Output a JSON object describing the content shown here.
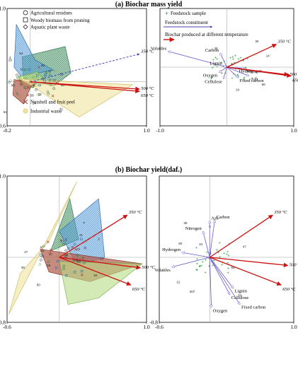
{
  "titles": {
    "a": "(a) Biochar mass yield",
    "b": "(b) Biochar yield(daf.)"
  },
  "legends": {
    "feedstock_groups": [
      "Agricultural residues",
      "Woody biomass from pruning",
      "Aquatic plant waste",
      "Nutshell and fruit peel",
      "Industrial waste"
    ],
    "variables": [
      "Feedstock sample",
      "Feedstock constituent",
      "Biochar produced at different temperature"
    ]
  },
  "colors": {
    "agricultural": "#2e8b57",
    "woody": "#3a8fd0",
    "aquatic": "#7fbf3f",
    "nutshell": "#a23b2c",
    "industrial": "#efe19a",
    "constituent": "#6a5acd",
    "temperature": "#cc1111",
    "sample": "#2ea043"
  },
  "chart_data": [
    {
      "type": "scatter",
      "title": "(a) Biochar mass yield",
      "panel": "samples",
      "xlim": [
        -0.2,
        1.0
      ],
      "ylim": [
        -0.6,
        1.0
      ],
      "xticks": [
        "-0.2",
        "1.0"
      ],
      "yticks": [
        "1.0",
        "-0.6"
      ],
      "polygons": [
        {
          "name": "Agricultural residues",
          "points": [
            [
              -0.07,
              0.34
            ],
            [
              0.3,
              0.48
            ],
            [
              0.35,
              0.12
            ],
            [
              0.2,
              -0.06
            ],
            [
              -0.06,
              0.05
            ]
          ]
        },
        {
          "name": "Woody biomass from pruning",
          "points": [
            [
              -0.12,
              0.78
            ],
            [
              0.04,
              0.3
            ],
            [
              0.2,
              0.16
            ],
            [
              -0.08,
              0.08
            ],
            [
              -0.14,
              0.2
            ]
          ]
        },
        {
          "name": "Aquatic plant waste",
          "points": [
            [
              -0.12,
              0.06
            ],
            [
              0.06,
              0.14
            ],
            [
              0.14,
              -0.02
            ],
            [
              -0.04,
              -0.1
            ]
          ]
        },
        {
          "name": "Nutshell and fruit peel",
          "points": [
            [
              -0.14,
              0.03
            ],
            [
              0.02,
              -0.01
            ],
            [
              -0.06,
              -0.3
            ],
            [
              -0.15,
              -0.18
            ]
          ]
        },
        {
          "name": "Industrial waste",
          "points": [
            [
              -0.1,
              0.04
            ],
            [
              0.88,
              -0.04
            ],
            [
              0.42,
              -0.48
            ],
            [
              0.02,
              -0.06
            ]
          ]
        }
      ],
      "arrows": [
        {
          "label": "350 °C",
          "to": [
            0.94,
            0.38
          ]
        },
        {
          "label": "500 °C",
          "to": [
            0.94,
            -0.1
          ]
        },
        {
          "label": "650 °C",
          "to": [
            0.94,
            -0.13
          ]
        }
      ],
      "sample_labels": [
        "7",
        "14",
        "12",
        "41",
        "29",
        "60",
        "48",
        "37",
        "51",
        "54",
        "5",
        "2",
        "53",
        "58"
      ]
    },
    {
      "type": "scatter",
      "title": "(a) Biochar mass yield",
      "panel": "variables",
      "xlim": [
        -1.0,
        1.0
      ],
      "ylim": [
        -1.0,
        1.0
      ],
      "xticks": [
        "-1.0",
        "1.0"
      ],
      "constituents": [
        {
          "label": "Volatiles",
          "to": [
            -0.88,
            0.27
          ]
        },
        {
          "label": "Carbon",
          "to": [
            -0.1,
            0.24
          ]
        },
        {
          "label": "Ash",
          "to": [
            0.33,
            -0.15
          ]
        },
        {
          "label": "Nitrogen",
          "to": [
            0.26,
            -0.02
          ]
        },
        {
          "label": "Hydrogen",
          "to": [
            0.16,
            -0.02
          ]
        },
        {
          "label": "Lignin",
          "to": [
            -0.05,
            0.02
          ]
        },
        {
          "label": "Oxygen",
          "to": [
            -0.12,
            -0.09
          ]
        },
        {
          "label": "Cellulose",
          "to": [
            -0.05,
            -0.2
          ]
        },
        {
          "label": "Fixed carbon",
          "to": [
            0.17,
            -0.18
          ]
        }
      ],
      "temperatures": [
        {
          "label": "350 °C",
          "to": [
            0.74,
            0.39
          ]
        },
        {
          "label": "500 °C",
          "to": [
            0.92,
            -0.13
          ]
        },
        {
          "label": "650 °C",
          "to": [
            0.96,
            -0.15
          ]
        }
      ],
      "sample_labels": [
        "24",
        "48",
        "14",
        "30",
        "58"
      ]
    },
    {
      "type": "scatter",
      "title": "(b) Biochar yield(daf.)",
      "panel": "samples",
      "xlim": [
        -0.6,
        1.0
      ],
      "ylim": [
        -0.8,
        1.0
      ],
      "xticks": [
        "-0.6",
        "1.0"
      ],
      "yticks": [
        "1.0",
        "-0.8"
      ],
      "polygons": [
        {
          "name": "Agricultural residues",
          "points": [
            [
              0.12,
              0.72
            ],
            [
              0.22,
              0.22
            ],
            [
              -0.1,
              0.08
            ],
            [
              -0.12,
              0.02
            ]
          ]
        },
        {
          "name": "Woody biomass from pruning",
          "points": [
            [
              0.45,
              0.72
            ],
            [
              0.52,
              0.0
            ],
            [
              0.2,
              -0.1
            ],
            [
              0.0,
              0.32
            ]
          ]
        },
        {
          "name": "Industrial waste",
          "points": [
            [
              0.2,
              0.93
            ],
            [
              -0.58,
              -0.7
            ],
            [
              -0.45,
              -0.2
            ],
            [
              -0.12,
              0.2
            ]
          ]
        },
        {
          "name": "Nutshell and fruit peel",
          "points": [
            [
              -0.22,
              0.1
            ],
            [
              0.95,
              -0.08
            ],
            [
              0.35,
              -0.3
            ],
            [
              -0.12,
              -0.18
            ]
          ]
        },
        {
          "name": "Aquatic plant waste",
          "points": [
            [
              0.0,
              -0.05
            ],
            [
              0.95,
              -0.08
            ],
            [
              0.45,
              -0.5
            ],
            [
              0.1,
              -0.58
            ]
          ]
        }
      ],
      "arrows": [
        {
          "label": "350 °C",
          "to": [
            0.78,
            0.52
          ]
        },
        {
          "label": "500 °C",
          "to": [
            0.93,
            -0.13
          ]
        },
        {
          "label": "650 °C",
          "to": [
            0.82,
            -0.34
          ]
        }
      ],
      "sample_labels": [
        "59",
        "38",
        "60",
        "54",
        "25",
        "5",
        "2",
        "4",
        "47",
        "31",
        "12",
        "56"
      ]
    },
    {
      "type": "scatter",
      "title": "(b) Biochar yield(daf.)",
      "panel": "variables",
      "xlim": [
        -0.6,
        1.0
      ],
      "ylim": [
        -0.8,
        1.0
      ],
      "xticks": [
        "-0.6",
        "1.0"
      ],
      "yticks": [
        "-0.8"
      ],
      "constituents": [
        {
          "label": "Ash",
          "to": [
            0.0,
            0.45
          ]
        },
        {
          "label": "Carbon",
          "to": [
            0.06,
            0.46
          ]
        },
        {
          "label": "Nitrogen",
          "to": [
            -0.08,
            0.32
          ]
        },
        {
          "label": "Hydrogen",
          "to": [
            -0.33,
            0.06
          ]
        },
        {
          "label": "Volatiles",
          "to": [
            -0.45,
            -0.12
          ]
        },
        {
          "label": "Lignin",
          "to": [
            0.28,
            -0.38
          ]
        },
        {
          "label": "Cellulose",
          "to": [
            0.24,
            -0.46
          ]
        },
        {
          "label": "Fixed carbon",
          "to": [
            0.36,
            -0.58
          ]
        },
        {
          "label": "Oxygen",
          "to": [
            0.02,
            -0.62
          ]
        }
      ],
      "temperatures": [
        {
          "label": "350 °C",
          "to": [
            0.75,
            0.52
          ]
        },
        {
          "label": "500 °C",
          "to": [
            0.93,
            -0.1
          ]
        },
        {
          "label": "650 °C",
          "to": [
            0.85,
            -0.34
          ]
        }
      ],
      "sample_labels": [
        "59",
        "38",
        "34",
        "60",
        "30",
        "58",
        "4",
        "12",
        "47",
        "5",
        "2"
      ]
    }
  ]
}
